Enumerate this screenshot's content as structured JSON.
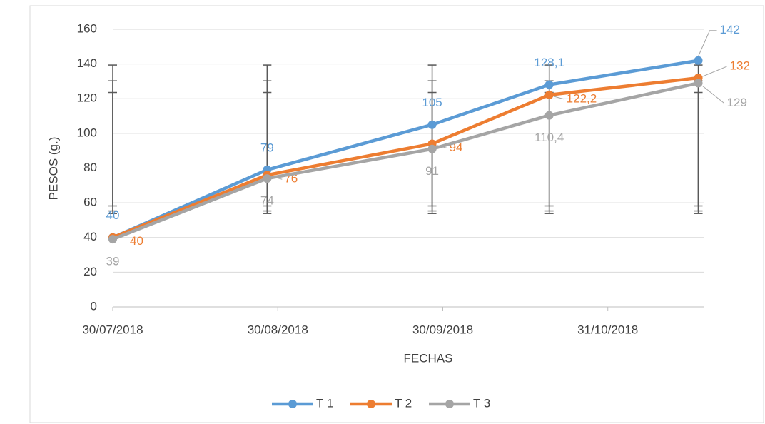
{
  "chart_data": {
    "type": "line",
    "x_label": "FECHAS",
    "y_label": "PESOS (g.)",
    "x": [
      "2018-07-30",
      "2018-08-28",
      "2018-09-28",
      "2018-10-20",
      "2018-11-17"
    ],
    "xlim": [
      "2018-07-30",
      "2018-11-18"
    ],
    "xticks": [
      {
        "value": "2018-07-30",
        "label": "30/07/2018"
      },
      {
        "value": "2018-08-30",
        "label": "30/08/2018"
      },
      {
        "value": "2018-09-30",
        "label": "30/09/2018"
      },
      {
        "value": "2018-10-31",
        "label": "31/10/2018"
      }
    ],
    "ylim": [
      0,
      160
    ],
    "yticks": [
      0,
      20,
      40,
      60,
      80,
      100,
      120,
      140,
      160
    ],
    "grid": true,
    "legend": "bottom",
    "series": [
      {
        "name": "T 1",
        "color": "#5b9bd5",
        "values": [
          40,
          79,
          105,
          128.1,
          142
        ],
        "value_labels": [
          "40",
          "79",
          "105",
          "128,1",
          "142"
        ],
        "error_range": [
          58.2,
          139.4
        ]
      },
      {
        "name": "T 2",
        "color": "#ed7d31",
        "values": [
          40,
          76,
          94,
          122.2,
          132
        ],
        "value_labels": [
          "40",
          "76",
          "94",
          "122,2",
          "132"
        ],
        "error_range": [
          55.3,
          130.3
        ]
      },
      {
        "name": "T 3",
        "color": "#a5a5a5",
        "values": [
          39,
          74,
          91,
          110.4,
          129
        ],
        "value_labels": [
          "39",
          "74",
          "91",
          "110,4",
          "129"
        ],
        "error_range": [
          53.8,
          123.6
        ]
      }
    ]
  }
}
